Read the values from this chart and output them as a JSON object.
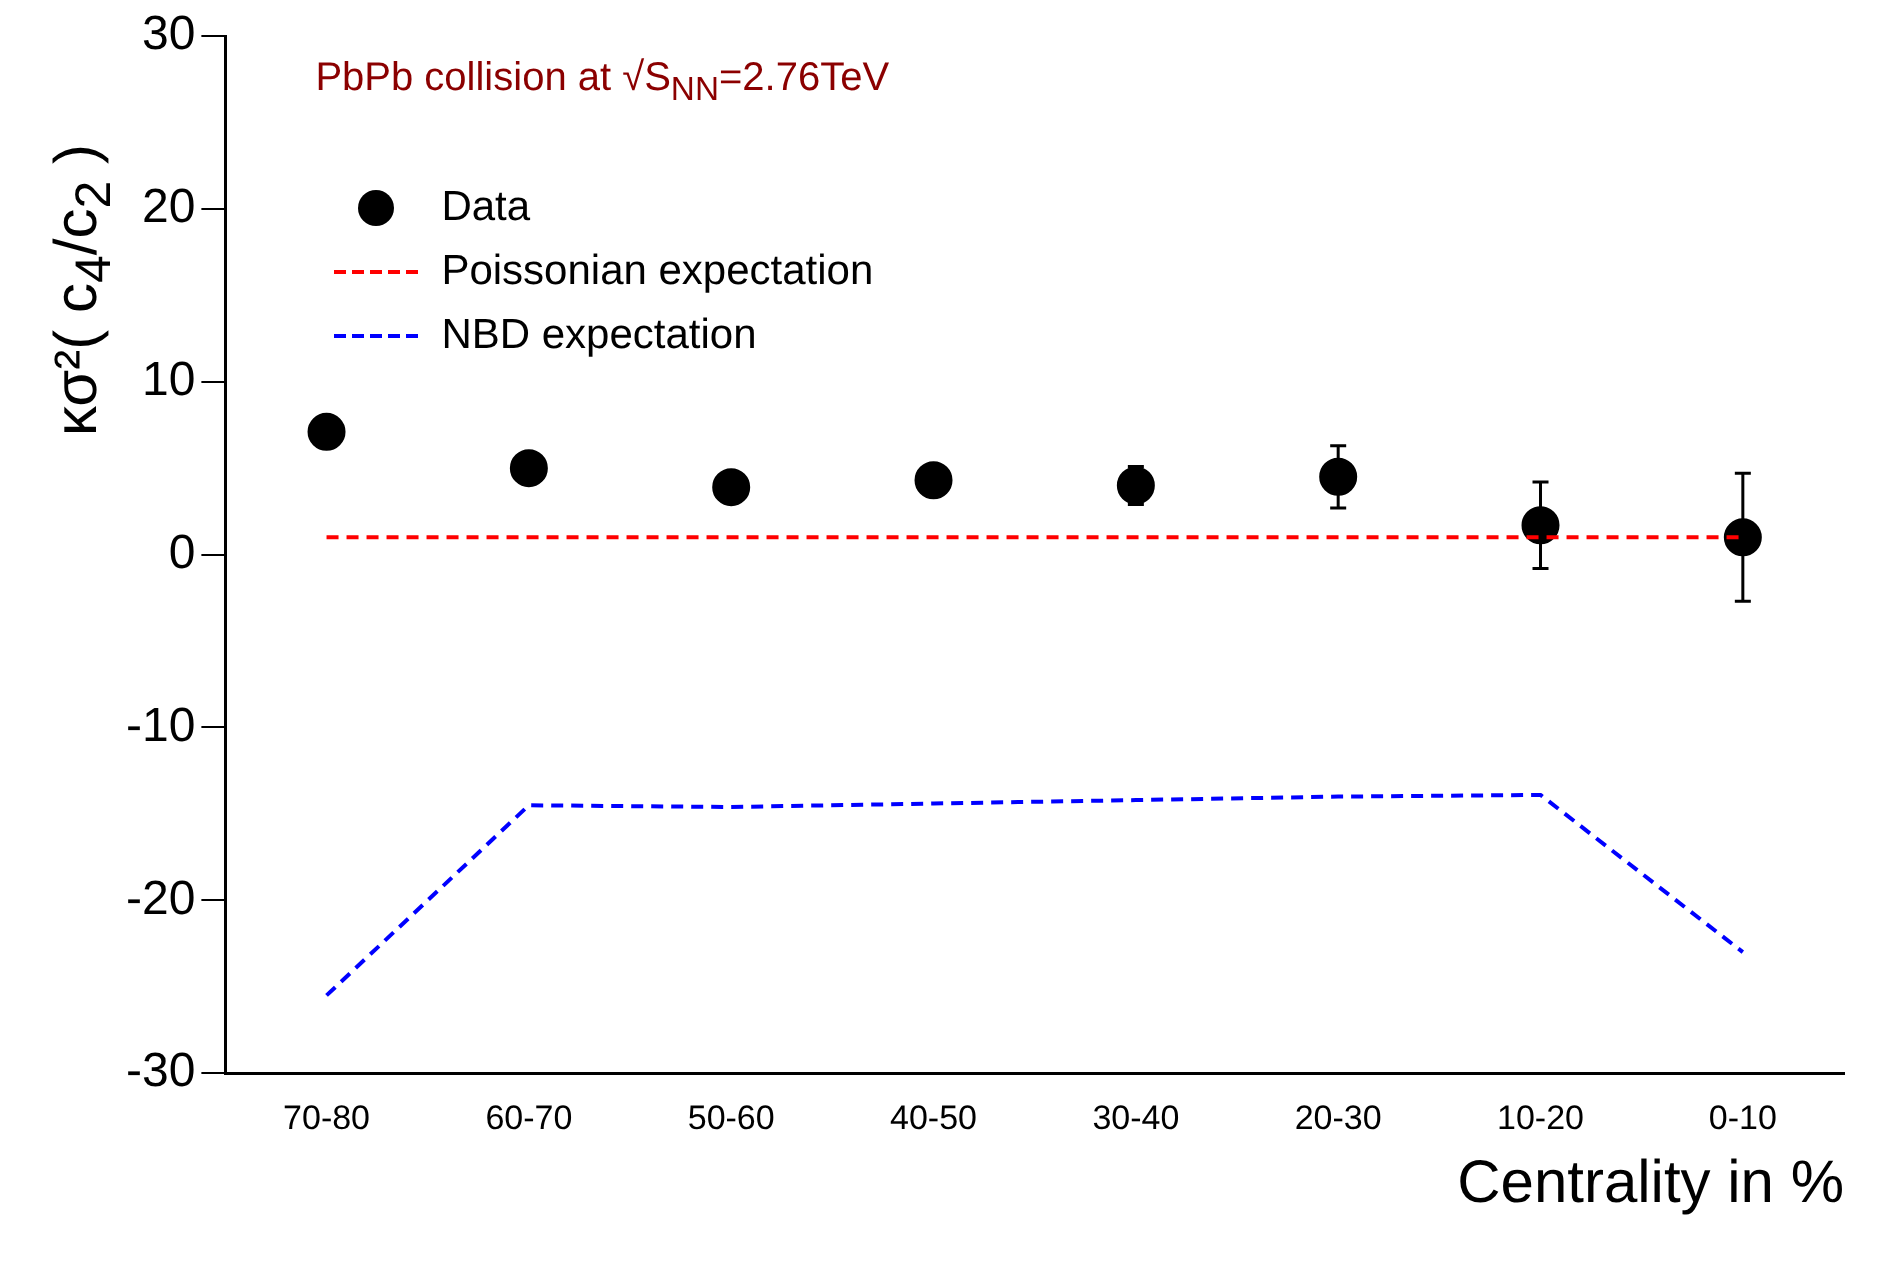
{
  "chart_data": {
    "type": "line",
    "xlabel": "Centrality in %",
    "ylabel": "κσ²( c$_{4}$/c$_{2}$ )",
    "annotations": [
      "PbPb collision at √S$_{NN}$=2.76TeV"
    ],
    "categories": [
      "70-80",
      "60-70",
      "50-60",
      "40-50",
      "30-40",
      "20-30",
      "10-20",
      "0-10"
    ],
    "series": [
      {
        "name": "Data",
        "type": "scatter",
        "color": "#000000",
        "marker": "circle",
        "values": [
          7.1,
          5.0,
          3.9,
          4.3,
          4.0,
          4.5,
          1.7,
          1.0
        ],
        "errors": [
          null,
          null,
          null,
          null,
          1.1,
          1.8,
          2.5,
          3.7
        ]
      },
      {
        "name": "Poissonian expectation",
        "color": "#ff0000",
        "marker": "none",
        "line_style": "dashed",
        "values": [
          1,
          1,
          1,
          1,
          1,
          1,
          1,
          1
        ]
      },
      {
        "name": "NBD expectation",
        "color": "#0000ff",
        "marker": "none",
        "line_style": "dashed",
        "values": [
          -25.5,
          -14.5,
          -14.6,
          -14.4,
          -14.2,
          -14.0,
          -13.9,
          -23.0
        ]
      }
    ],
    "ylim": [
      -30,
      30
    ],
    "yticks": [
      -30,
      -20,
      -10,
      0,
      10,
      20,
      30
    ],
    "grid": false,
    "legend": "top left"
  }
}
